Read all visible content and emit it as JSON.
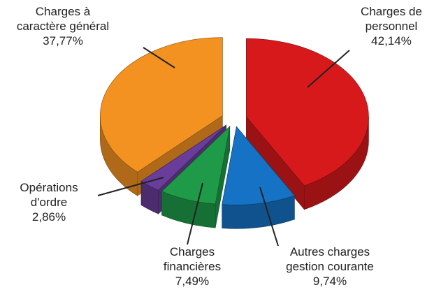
{
  "chart_data": {
    "type": "pie3d",
    "categories": [
      "Charges de\npersonnel",
      "Autres charges\ngestion courante",
      "Charges\nfinancières",
      "Opérations\nd'ordre",
      "Charges à\ncaractère général"
    ],
    "values": [
      42.14,
      9.74,
      7.49,
      2.86,
      37.77
    ],
    "value_labels": [
      "42,14%",
      "9,74%",
      "7,49%",
      "2,86%",
      "37,77%"
    ],
    "colors": [
      "#d7191c",
      "#1672c4",
      "#1f9a48",
      "#6a3d9a",
      "#f39221"
    ]
  }
}
